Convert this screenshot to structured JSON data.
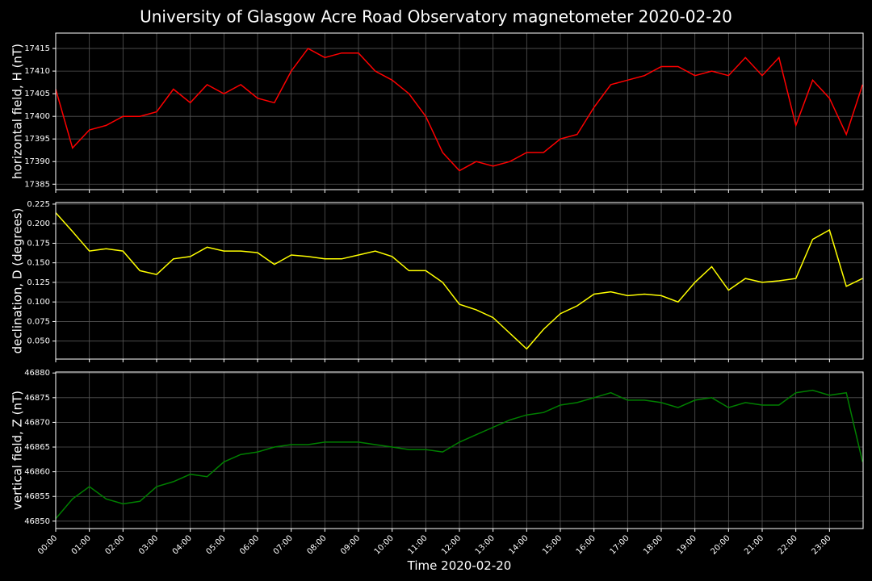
{
  "chart_data": [
    {
      "type": "line",
      "title": "University of Glasgow Acre Road Observatory magnetometer 2020-02-20",
      "ylabel": "horizontal field, H (nT)",
      "color": "#ff0000",
      "grid": true,
      "x": [
        "00:00",
        "00:30",
        "01:00",
        "01:30",
        "02:00",
        "02:30",
        "03:00",
        "03:30",
        "04:00",
        "04:30",
        "05:00",
        "05:30",
        "06:00",
        "06:30",
        "07:00",
        "07:30",
        "08:00",
        "08:30",
        "09:00",
        "09:30",
        "10:00",
        "10:30",
        "11:00",
        "11:30",
        "12:00",
        "12:30",
        "13:00",
        "13:30",
        "14:00",
        "14:30",
        "15:00",
        "15:30",
        "16:00",
        "16:30",
        "17:00",
        "17:30",
        "18:00",
        "18:30",
        "19:00",
        "19:30",
        "20:00",
        "20:30",
        "21:00",
        "21:30",
        "22:00",
        "22:30",
        "23:00",
        "23:30",
        "23:59"
      ],
      "values": [
        17406,
        17393,
        17397,
        17398,
        17400,
        17400,
        17401,
        17406,
        17403,
        17407,
        17405,
        17407,
        17404,
        17403,
        17410,
        17415,
        17413,
        17414,
        17414,
        17410,
        17408,
        17405,
        17400,
        17392,
        17388,
        17390,
        17389,
        17390,
        17392,
        17392,
        17395,
        17396,
        17402,
        17407,
        17408,
        17409,
        17411,
        17411,
        17409,
        17410,
        17409,
        17413,
        17409,
        17413,
        17398,
        17408,
        17404,
        17396,
        17407
      ],
      "xlim": [
        "00:00",
        "24:00"
      ],
      "ylim": [
        17383.8,
        17418.4
      ],
      "xticks": [
        "00:00",
        "01:00",
        "02:00",
        "03:00",
        "04:00",
        "05:00",
        "06:00",
        "07:00",
        "08:00",
        "09:00",
        "10:00",
        "11:00",
        "12:00",
        "13:00",
        "14:00",
        "15:00",
        "16:00",
        "17:00",
        "18:00",
        "19:00",
        "20:00",
        "21:00",
        "22:00",
        "23:00"
      ],
      "yticks": [
        17385,
        17390,
        17395,
        17400,
        17405,
        17410,
        17415
      ]
    },
    {
      "type": "line",
      "ylabel": "declination, D (degrees)",
      "color": "#ffff00",
      "grid": true,
      "x": [
        "00:00",
        "00:30",
        "01:00",
        "01:30",
        "02:00",
        "02:30",
        "03:00",
        "03:30",
        "04:00",
        "04:30",
        "05:00",
        "05:30",
        "06:00",
        "06:30",
        "07:00",
        "07:30",
        "08:00",
        "08:30",
        "09:00",
        "09:30",
        "10:00",
        "10:30",
        "11:00",
        "11:30",
        "12:00",
        "12:30",
        "13:00",
        "13:30",
        "14:00",
        "14:30",
        "15:00",
        "15:30",
        "16:00",
        "16:30",
        "17:00",
        "17:30",
        "18:00",
        "18:30",
        "19:00",
        "19:30",
        "20:00",
        "20:30",
        "21:00",
        "21:30",
        "22:00",
        "22:30",
        "23:00",
        "23:30",
        "23:59"
      ],
      "values": [
        0.214,
        0.19,
        0.165,
        0.168,
        0.165,
        0.14,
        0.135,
        0.155,
        0.158,
        0.17,
        0.165,
        0.165,
        0.163,
        0.148,
        0.16,
        0.158,
        0.155,
        0.155,
        0.16,
        0.165,
        0.158,
        0.14,
        0.14,
        0.125,
        0.097,
        0.09,
        0.08,
        0.06,
        0.04,
        0.065,
        0.085,
        0.095,
        0.11,
        0.113,
        0.108,
        0.11,
        0.108,
        0.1,
        0.125,
        0.145,
        0.115,
        0.13,
        0.125,
        0.127,
        0.13,
        0.18,
        0.192,
        0.12,
        0.13
      ],
      "xlim": [
        "00:00",
        "24:00"
      ],
      "ylim": [
        0.027,
        0.227
      ],
      "xticks": [
        "00:00",
        "01:00",
        "02:00",
        "03:00",
        "04:00",
        "05:00",
        "06:00",
        "07:00",
        "08:00",
        "09:00",
        "10:00",
        "11:00",
        "12:00",
        "13:00",
        "14:00",
        "15:00",
        "16:00",
        "17:00",
        "18:00",
        "19:00",
        "20:00",
        "21:00",
        "22:00",
        "23:00"
      ],
      "yticks": [
        {
          "value": 0.05,
          "label": "0.050"
        },
        0.075,
        {
          "value": 0.1,
          "label": "0.100"
        },
        0.125,
        {
          "value": 0.15,
          "label": "0.150"
        },
        0.175,
        {
          "value": 0.2,
          "label": "0.200"
        },
        0.225
      ]
    },
    {
      "type": "line",
      "ylabel": "vertical field, Z (nT)",
      "xlabel": "Time 2020-02-20",
      "color": "#008000",
      "grid": true,
      "x": [
        "00:00",
        "00:30",
        "01:00",
        "01:30",
        "02:00",
        "02:30",
        "03:00",
        "03:30",
        "04:00",
        "04:30",
        "05:00",
        "05:30",
        "06:00",
        "06:30",
        "07:00",
        "07:30",
        "08:00",
        "08:30",
        "09:00",
        "09:30",
        "10:00",
        "10:30",
        "11:00",
        "11:30",
        "12:00",
        "12:30",
        "13:00",
        "13:30",
        "14:00",
        "14:30",
        "15:00",
        "15:30",
        "16:00",
        "16:30",
        "17:00",
        "17:30",
        "18:00",
        "18:30",
        "19:00",
        "19:30",
        "20:00",
        "20:30",
        "21:00",
        "21:30",
        "22:00",
        "22:30",
        "23:00",
        "23:30",
        "23:59"
      ],
      "values": [
        46850.5,
        46854.5,
        46857,
        46854.5,
        46853.5,
        46854,
        46857,
        46858,
        46859.5,
        46859,
        46862,
        46863.5,
        46864,
        46865,
        46865.5,
        46865.5,
        46866,
        46866,
        46866,
        46865.5,
        46865,
        46864.5,
        46864.5,
        46864,
        46866,
        46867.5,
        46869,
        46870.5,
        46871.5,
        46872,
        46873.5,
        46874,
        46875,
        46876,
        46874.5,
        46874.5,
        46874,
        46873,
        46874.5,
        46875,
        46873,
        46874,
        46873.5,
        46873.5,
        46876,
        46876.5,
        46875.5,
        46876,
        46862
      ],
      "xlim": [
        "00:00",
        "24:00"
      ],
      "ylim": [
        46848.5,
        46880.2
      ],
      "xticks": [
        "00:00",
        "01:00",
        "02:00",
        "03:00",
        "04:00",
        "05:00",
        "06:00",
        "07:00",
        "08:00",
        "09:00",
        "10:00",
        "11:00",
        "12:00",
        "13:00",
        "14:00",
        "15:00",
        "16:00",
        "17:00",
        "18:00",
        "19:00",
        "20:00",
        "21:00",
        "22:00",
        "23:00"
      ],
      "yticks": [
        46850,
        46855,
        46860,
        46865,
        46870,
        46875,
        46880
      ]
    }
  ]
}
